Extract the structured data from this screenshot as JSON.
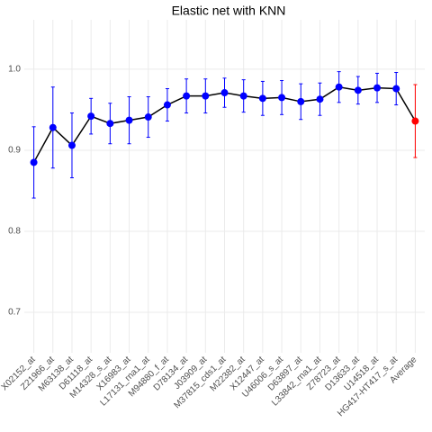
{
  "chart_data": {
    "type": "line",
    "title": "Elastic net  with KNN",
    "categories": [
      "X02152_at",
      "Z21966_at",
      "M63138_at",
      "D61118_at",
      "M14328_s_at",
      "X16983_at",
      "L17131_rna1_at",
      "M94880_f_at",
      "D78134_at",
      "J03909_at",
      "M37815_cds1_at",
      "M22382_at",
      "X12447_at",
      "U46006_s_at",
      "D63897_at",
      "L33842_rna1_at",
      "Z78723_at",
      "D13633_at",
      "U14518_at",
      "HG417-HT417_s_at",
      "Average"
    ],
    "values": [
      0.885,
      0.928,
      0.906,
      0.942,
      0.933,
      0.937,
      0.941,
      0.956,
      0.967,
      0.967,
      0.971,
      0.967,
      0.964,
      0.965,
      0.96,
      0.963,
      0.978,
      0.974,
      0.977,
      0.976,
      0.936
    ],
    "errors": [
      0.044,
      0.05,
      0.04,
      0.022,
      0.025,
      0.029,
      0.025,
      0.02,
      0.021,
      0.021,
      0.018,
      0.02,
      0.021,
      0.021,
      0.022,
      0.02,
      0.019,
      0.017,
      0.018,
      0.02,
      0.045
    ],
    "colors": [
      "#0000ff",
      "#0000ff",
      "#0000ff",
      "#0000ff",
      "#0000ff",
      "#0000ff",
      "#0000ff",
      "#0000ff",
      "#0000ff",
      "#0000ff",
      "#0000ff",
      "#0000ff",
      "#0000ff",
      "#0000ff",
      "#0000ff",
      "#0000ff",
      "#0000ff",
      "#0000ff",
      "#0000ff",
      "#0000ff",
      "#ff0000"
    ],
    "line_color": "#000000",
    "ylim": [
      0.65,
      1.061
    ],
    "yticks": [
      0.7,
      0.8,
      0.9,
      {
        "value": 1,
        "label": "1.0"
      }
    ],
    "grid": true
  }
}
